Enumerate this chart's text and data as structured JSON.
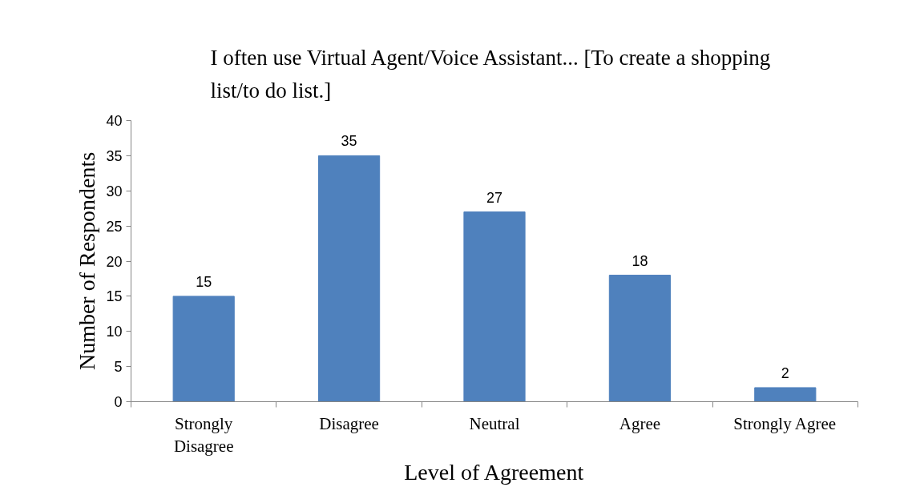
{
  "chart_data": {
    "type": "bar",
    "title": "I often use Virtual Agent/Voice Assistant...  [To create a shopping list/to do list.]",
    "xlabel": "Level of Agreement",
    "ylabel": "Number of Respondents",
    "categories": [
      "Strongly Disagree",
      "Disagree",
      "Neutral",
      "Agree",
      "Strongly Agree"
    ],
    "values": [
      15,
      35,
      27,
      18,
      2
    ],
    "color": "#4f81bd",
    "ylim": [
      0,
      40
    ],
    "yticks": [
      0,
      5,
      10,
      15,
      20,
      25,
      30,
      35,
      40
    ],
    "grid": false,
    "data_labels": true
  }
}
